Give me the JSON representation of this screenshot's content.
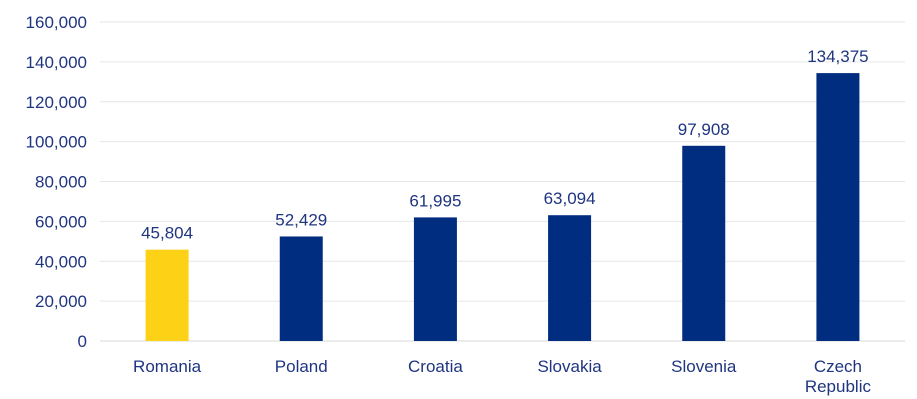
{
  "chart_data": {
    "type": "bar",
    "categories": [
      "Romania",
      "Poland",
      "Croatia",
      "Slovakia",
      "Slovenia",
      "Czech Republic"
    ],
    "category_lines": [
      [
        "Romania"
      ],
      [
        "Poland"
      ],
      [
        "Croatia"
      ],
      [
        "Slovakia"
      ],
      [
        "Slovenia"
      ],
      [
        "Czech",
        "Republic"
      ]
    ],
    "values": [
      45804,
      52429,
      61995,
      63094,
      97908,
      134375
    ],
    "data_labels": [
      "45,804",
      "52,429",
      "61,995",
      "63,094",
      "97,908",
      "134,375"
    ],
    "ylim": [
      0,
      160000
    ],
    "yticks": [
      0,
      20000,
      40000,
      60000,
      80000,
      100000,
      120000,
      140000,
      160000
    ],
    "ytick_labels": [
      "0",
      "20,000",
      "40,000",
      "60,000",
      "80,000",
      "100,000",
      "120,000",
      "140,000",
      "160,000"
    ],
    "title": "",
    "xlabel": "",
    "ylabel": "",
    "grid": true,
    "legend": "none",
    "colors": {
      "default_bar": "#002d7f",
      "highlight_bar": "#fdd116",
      "text": "#1f3580",
      "grid": "#e6e6e6"
    },
    "highlight_index": 0
  }
}
